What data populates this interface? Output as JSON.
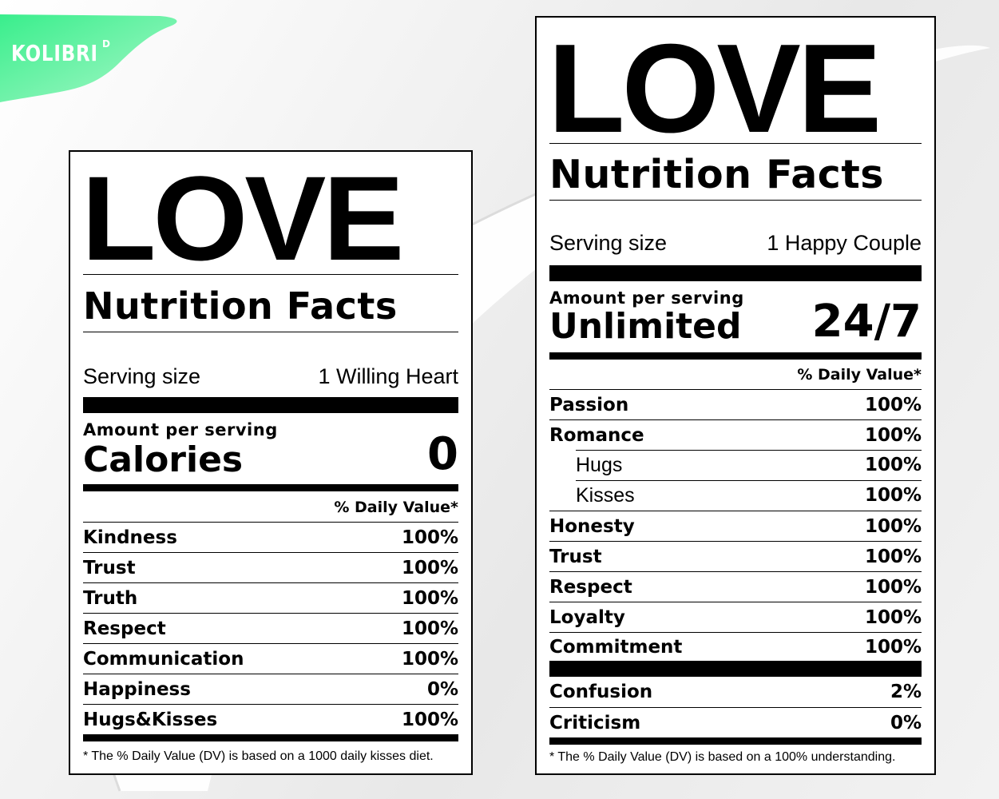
{
  "brand": {
    "name": "KOLIBRI",
    "superscript": "D",
    "color": "#5ef0a2"
  },
  "labels": [
    {
      "title": "LOVE",
      "subtitle": "Nutrition Facts",
      "serving_label": "Serving size",
      "serving_value": "1 Willing Heart",
      "amount_label": "Amount per serving",
      "main_label": "Calories",
      "main_value": "0",
      "dv_header": "% Daily Value*",
      "rows": [
        {
          "name": "Kindness",
          "value": "100%"
        },
        {
          "name": "Trust",
          "value": "100%"
        },
        {
          "name": "Truth",
          "value": "100%"
        },
        {
          "name": "Respect",
          "value": "100%"
        },
        {
          "name": "Communication",
          "value": "100%"
        },
        {
          "name": "Happiness",
          "value": "0%"
        },
        {
          "name": "Hugs&Kisses",
          "value": "100%"
        }
      ],
      "footnote": "* The % Daily Value (DV) is based on a 1000 daily kisses diet."
    },
    {
      "title": "LOVE",
      "subtitle": "Nutrition Facts",
      "serving_label": "Serving size",
      "serving_value": "1 Happy Couple",
      "amount_label": "Amount per serving",
      "main_label": "Unlimited",
      "main_value": "24/7",
      "dv_header": "% Daily Value*",
      "rows": [
        {
          "name": "Passion",
          "value": "100%"
        },
        {
          "name": "Romance",
          "value": "100%"
        },
        {
          "name": "Hugs",
          "value": "100%"
        },
        {
          "name": "Kisses",
          "value": "100%"
        },
        {
          "name": "Honesty",
          "value": "100%"
        },
        {
          "name": "Trust",
          "value": "100%"
        },
        {
          "name": "Respect",
          "value": "100%"
        },
        {
          "name": "Loyalty",
          "value": "100%"
        },
        {
          "name": "Commitment",
          "value": "100%"
        }
      ],
      "extra_rows": [
        {
          "name": "Confusion",
          "value": "2%"
        },
        {
          "name": "Criticism",
          "value": "0%"
        }
      ],
      "footnote": "* The % Daily Value (DV) is based on a 100% understanding."
    }
  ]
}
